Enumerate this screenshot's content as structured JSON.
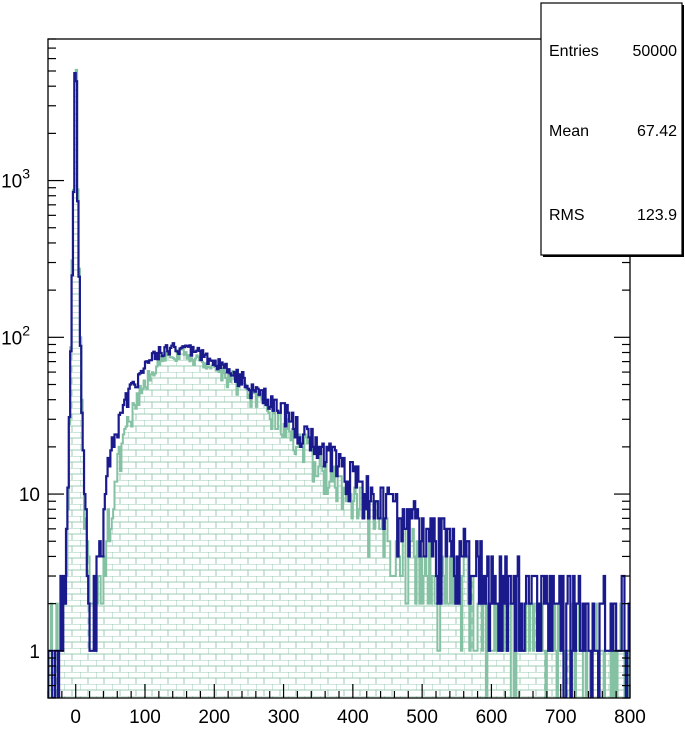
{
  "chart_data": {
    "type": "histogram",
    "title": "",
    "xlabel": "",
    "ylabel": "",
    "xlim": [
      -40,
      800
    ],
    "ylim": [
      0.5,
      8000
    ],
    "y_scale": "log",
    "x_ticks": [
      0,
      100,
      200,
      300,
      400,
      500,
      600,
      700,
      800
    ],
    "x_tick_labels": [
      "0",
      "100",
      "200",
      "300",
      "400",
      "500",
      "600",
      "700",
      "800"
    ],
    "y_ticks": [
      {
        "value": 1,
        "label": "1"
      },
      {
        "value": 10,
        "label": "10"
      },
      {
        "value": 100,
        "label": "10",
        "exp": "2"
      },
      {
        "value": 1000,
        "label": "10",
        "exp": "3"
      }
    ],
    "stats_box": {
      "rows": [
        {
          "name": "Entries",
          "value": "50000"
        },
        {
          "name": "Mean",
          "value": "67.42"
        },
        {
          "name": "RMS",
          "value": "123.9"
        }
      ]
    },
    "series": [
      {
        "style": "filled-hatched",
        "color": "#85c1a3",
        "peak": {
          "x": 0,
          "y": 5000
        },
        "knots": [
          [
            -40,
            0.5
          ],
          [
            -30,
            0.9
          ],
          [
            -15,
            2.5
          ],
          [
            -10,
            15
          ],
          [
            -5,
            300
          ],
          [
            0,
            5000
          ],
          [
            5,
            300
          ],
          [
            10,
            20
          ],
          [
            15,
            5
          ],
          [
            20,
            2
          ],
          [
            28,
            0.8
          ],
          [
            35,
            2.5
          ],
          [
            50,
            8
          ],
          [
            70,
            22
          ],
          [
            90,
            40
          ],
          [
            110,
            60
          ],
          [
            130,
            75
          ],
          [
            150,
            78
          ],
          [
            175,
            72
          ],
          [
            200,
            65
          ],
          [
            230,
            52
          ],
          [
            260,
            40
          ],
          [
            290,
            30
          ],
          [
            320,
            22
          ],
          [
            350,
            15
          ],
          [
            380,
            11
          ],
          [
            410,
            8
          ],
          [
            440,
            6
          ],
          [
            470,
            4.5
          ],
          [
            500,
            3.5
          ],
          [
            550,
            2.5
          ],
          [
            600,
            1.8
          ],
          [
            650,
            1.4
          ],
          [
            700,
            1.1
          ],
          [
            750,
            0.95
          ],
          [
            800,
            0.85
          ]
        ]
      },
      {
        "style": "line",
        "color": "#1a1a8c",
        "peak": {
          "x": 0,
          "y": 4500
        },
        "knots": [
          [
            -40,
            0.5
          ],
          [
            -30,
            0.9
          ],
          [
            -15,
            3
          ],
          [
            -10,
            15
          ],
          [
            -5,
            250
          ],
          [
            0,
            4500
          ],
          [
            5,
            250
          ],
          [
            10,
            20
          ],
          [
            15,
            6
          ],
          [
            20,
            3
          ],
          [
            25,
            1
          ],
          [
            30,
            3
          ],
          [
            45,
            12
          ],
          [
            60,
            28
          ],
          [
            80,
            45
          ],
          [
            100,
            68
          ],
          [
            120,
            80
          ],
          [
            140,
            85
          ],
          [
            160,
            83
          ],
          [
            180,
            78
          ],
          [
            200,
            70
          ],
          [
            230,
            58
          ],
          [
            260,
            46
          ],
          [
            290,
            36
          ],
          [
            320,
            27
          ],
          [
            350,
            20
          ],
          [
            380,
            15
          ],
          [
            410,
            11.5
          ],
          [
            440,
            9
          ],
          [
            470,
            7
          ],
          [
            500,
            5.5
          ],
          [
            550,
            4
          ],
          [
            600,
            3
          ],
          [
            650,
            2.3
          ],
          [
            700,
            1.8
          ],
          [
            750,
            1.5
          ],
          [
            800,
            1.3
          ]
        ]
      }
    ]
  }
}
